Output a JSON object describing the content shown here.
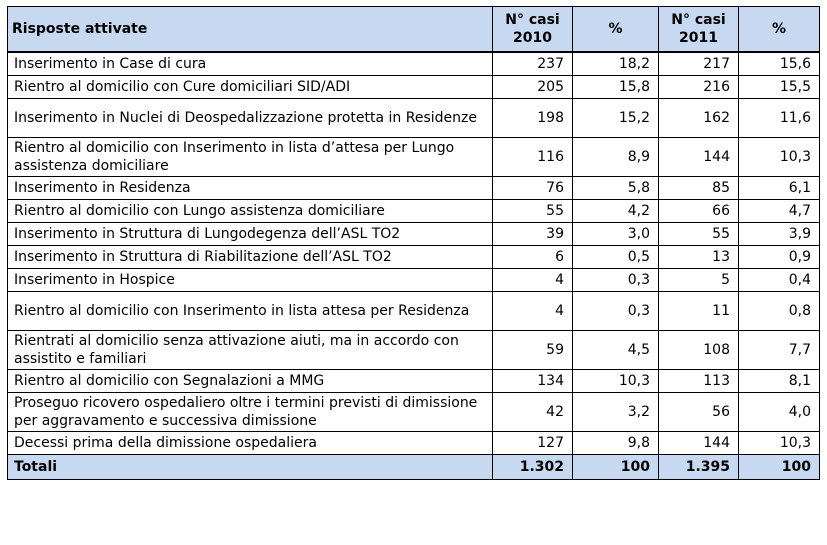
{
  "header": {
    "label": "Risposte attivate",
    "casi_2010": "N° casi 2010",
    "pct_2010": "%",
    "casi_2011": "N° casi 2011",
    "pct_2011": "%"
  },
  "rows": [
    {
      "label": "Inserimento in Case di cura",
      "c2010": "237",
      "p2010": "18,2",
      "c2011": "217",
      "p2011": "15,6"
    },
    {
      "label": "Rientro al domicilio con Cure domiciliari SID/ADI",
      "c2010": "205",
      "p2010": "15,8",
      "c2011": "216",
      "p2011": "15,5"
    },
    {
      "label": "Inserimento in Nuclei di Deospedalizzazione protetta in Residenze",
      "c2010": "198",
      "p2010": "15,2",
      "c2011": "162",
      "p2011": "11,6"
    },
    {
      "label": "Rientro al domicilio con Inserimento in lista d’attesa per Lungo assistenza domiciliare",
      "c2010": "116",
      "p2010": "8,9",
      "c2011": "144",
      "p2011": "10,3"
    },
    {
      "label": "Inserimento in Residenza",
      "c2010": "76",
      "p2010": "5,8",
      "c2011": "85",
      "p2011": "6,1"
    },
    {
      "label": "Rientro al domicilio con Lungo assistenza domiciliare",
      "c2010": "55",
      "p2010": "4,2",
      "c2011": "66",
      "p2011": "4,7"
    },
    {
      "label": "Inserimento in Struttura di Lungodegenza dell’ASL TO2",
      "c2010": "39",
      "p2010": "3,0",
      "c2011": "55",
      "p2011": "3,9"
    },
    {
      "label": "Inserimento in Struttura di Riabilitazione dell’ASL TO2",
      "c2010": "6",
      "p2010": "0,5",
      "c2011": "13",
      "p2011": "0,9"
    },
    {
      "label": "Inserimento in Hospice",
      "c2010": "4",
      "p2010": "0,3",
      "c2011": "5",
      "p2011": "0,4"
    },
    {
      "label": "Rientro al domicilio con Inserimento in lista attesa per Residenza",
      "c2010": "4",
      "p2010": "0,3",
      "c2011": "11",
      "p2011": "0,8"
    },
    {
      "label": "Rientrati al domicilio senza attivazione aiuti, ma in accordo con assistito e familiari",
      "c2010": "59",
      "p2010": "4,5",
      "c2011": "108",
      "p2011": "7,7"
    },
    {
      "label": "Rientro al domicilio con Segnalazioni a MMG",
      "c2010": "134",
      "p2010": "10,3",
      "c2011": "113",
      "p2011": "8,1"
    },
    {
      "label": "Proseguo ricovero ospedaliero oltre i termini previsti di dimissione per aggravamento e successiva dimissione",
      "c2010": "42",
      "p2010": "3,2",
      "c2011": "56",
      "p2011": "4,0"
    },
    {
      "label": "Decessi prima della dimissione ospedaliera",
      "c2010": "127",
      "p2010": "9,8",
      "c2011": "144",
      "p2011": "10,3"
    }
  ],
  "totals": {
    "label": "Totali",
    "c2010": "1.302",
    "p2010": "100",
    "c2011": "1.395",
    "p2011": "100"
  }
}
